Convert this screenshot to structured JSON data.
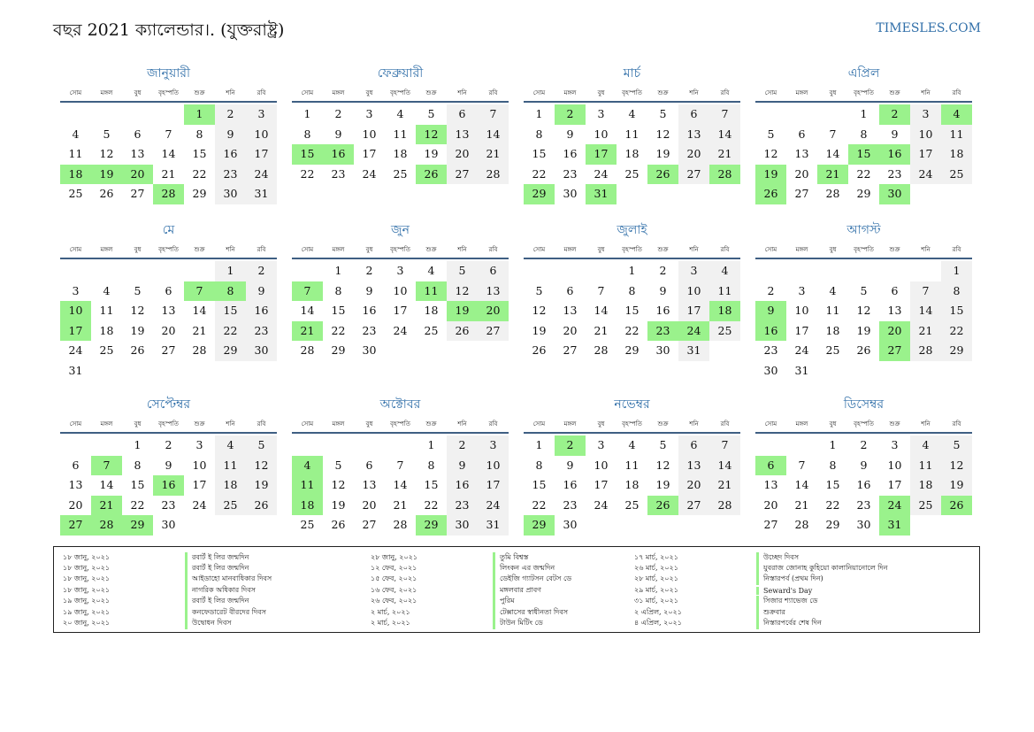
{
  "header": {
    "title": "বছর 2021 ক্যালেন্ডার।. (যুক্তরাষ্ট্র)",
    "site": "TIMESLES.COM"
  },
  "weekdays": [
    "সোম",
    "মঙ্গল",
    "বুধ",
    "বৃহস্পতি",
    "শুক্র",
    "শনি",
    "রবি"
  ],
  "colors": {
    "accent": "#2f6ea8",
    "holiday": "#9af28c",
    "weekend": "#f1f1f1"
  },
  "months": [
    {
      "name": "জানুয়ারী",
      "offset": 4,
      "days": 31,
      "holidays": [
        1,
        18,
        19,
        20,
        28
      ]
    },
    {
      "name": "ফেব্রুয়ারী",
      "offset": 0,
      "days": 28,
      "holidays": [
        12,
        15,
        16,
        26
      ]
    },
    {
      "name": "মার্চ",
      "offset": 0,
      "days": 31,
      "holidays": [
        2,
        17,
        26,
        28,
        29,
        31
      ]
    },
    {
      "name": "এপ্রিল",
      "offset": 3,
      "days": 30,
      "holidays": [
        2,
        4,
        15,
        16,
        19,
        21,
        26,
        30
      ]
    },
    {
      "name": "মে",
      "offset": 5,
      "days": 31,
      "holidays": [
        7,
        8,
        10,
        17
      ]
    },
    {
      "name": "জুন",
      "offset": 1,
      "days": 30,
      "holidays": [
        7,
        11,
        19,
        20,
        21
      ]
    },
    {
      "name": "জুলাই",
      "offset": 3,
      "days": 31,
      "holidays": [
        18,
        23,
        24
      ]
    },
    {
      "name": "আগস্ট",
      "offset": 6,
      "days": 31,
      "holidays": [
        9,
        16,
        20,
        27
      ]
    },
    {
      "name": "সেপ্টেম্বর",
      "offset": 2,
      "days": 30,
      "holidays": [
        7,
        16,
        21,
        27,
        28,
        29
      ]
    },
    {
      "name": "অক্টোবর",
      "offset": 4,
      "days": 31,
      "holidays": [
        4,
        11,
        18,
        29
      ]
    },
    {
      "name": "নভেম্বর",
      "offset": 0,
      "days": 30,
      "holidays": [
        2,
        26,
        29
      ]
    },
    {
      "name": "ডিসেম্বর",
      "offset": 2,
      "days": 31,
      "holidays": [
        6,
        24,
        26,
        31
      ]
    }
  ],
  "holiday_list": [
    [
      {
        "date": "১৮ জানু, ২০২১",
        "name": "রবার্ট ই লির জন্মদিন"
      },
      {
        "date": "১৮ জানু, ২০২১",
        "name": "রবার্ট ই লির জন্মদিন"
      },
      {
        "date": "১৮ জানু, ২০২১",
        "name": "আইডাহো মানবাধিকার দিবস"
      },
      {
        "date": "১৮ জানু, ২০২১",
        "name": "নাগরিক অধিকার দিবস"
      },
      {
        "date": "১৯ জানু, ২০২১",
        "name": "রবার্ট ই লির জন্মদিন"
      },
      {
        "date": "১৯ জানু, ২০২১",
        "name": "কনফেডারেট বীরদের দিবস"
      },
      {
        "date": "২০ জানু, ২০২১",
        "name": "উদ্বোধন দিবস"
      }
    ],
    [
      {
        "date": "২৮ জানু, ২০২১",
        "name": "তুমি বিশ্বস্ত"
      },
      {
        "date": "১২ ফেব, ২০২১",
        "name": "লিংকন এর জন্মদিন"
      },
      {
        "date": "১৫ ফেব, ২০২১",
        "name": "ডেইজি গ্যাটসন বেটস ডে"
      },
      {
        "date": "১৬ ফেব, ২০২১",
        "name": "মঙ্গলবার প্রাবণ"
      },
      {
        "date": "২৬ ফেব, ২০২১",
        "name": "পুরিম"
      },
      {
        "date": "২ মার্চ, ২০২১",
        "name": "টেক্সাসের স্বাধীনতা দিবস"
      },
      {
        "date": "২ মার্চ, ২০২১",
        "name": "টাউন মিটিং ডে"
      }
    ],
    [
      {
        "date": "১৭ মার্চ, ২০২১",
        "name": "উচ্ছেদ দিবস"
      },
      {
        "date": "২৬ মার্চ, ২০২১",
        "name": "যুবরাজ জোনাহ কুহিয়ো কালানিয়ানোলে দিন"
      },
      {
        "date": "২৮ মার্চ, ২০২১",
        "name": "নিস্তারপর্ব (প্রথম দিন)"
      },
      {
        "date": "২৯ মার্চ, ২০২১",
        "name": "Seward's Day"
      },
      {
        "date": "৩১ মার্চ, ২০২১",
        "name": "সিজার শ্যাভেজ ডে"
      },
      {
        "date": "২ এপ্রিল, ২০২১",
        "name": "শুক্রবার"
      },
      {
        "date": "৪ এপ্রিল, ২০২১",
        "name": "নিস্তারপর্বের শেষ দিন"
      }
    ]
  ]
}
